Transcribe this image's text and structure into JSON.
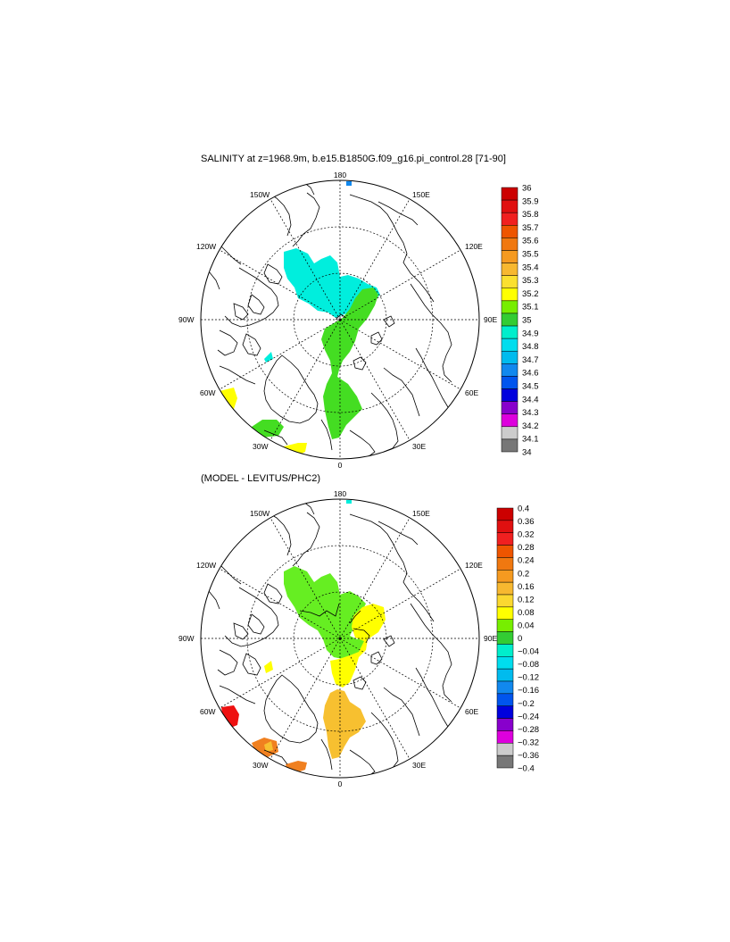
{
  "panels": [
    {
      "title": "SALINITY at z=1968.9m, b.e15.B1850G.f09_g16.pi_control.28 [71-90]",
      "lon_labels": {
        "top": "180",
        "bottom": "0",
        "left": "90W",
        "right": "90E",
        "w150": "150W",
        "e150": "150E",
        "w120": "120W",
        "e120": "120E",
        "w60": "60W",
        "e60": "60E",
        "w30": "30W",
        "e30": "30E"
      },
      "colorbar": {
        "labels": [
          "36",
          "35.9",
          "35.8",
          "35.7",
          "35.6",
          "35.5",
          "35.4",
          "35.3",
          "35.2",
          "35.1",
          "35",
          "34.9",
          "34.8",
          "34.7",
          "34.6",
          "34.5",
          "34.4",
          "34.3",
          "34.2",
          "34.1",
          "34"
        ],
        "colors": [
          "#cc0000",
          "#e01010",
          "#f02020",
          "#ee5500",
          "#f07810",
          "#f59a20",
          "#f7b830",
          "#fbe030",
          "#ffff00",
          "#77ee00",
          "#33cc33",
          "#00eecc",
          "#00ddee",
          "#00bbee",
          "#1188ee",
          "#0055ee",
          "#0000dd",
          "#8800cc",
          "#dd00dd",
          "#cccccc",
          "#777777"
        ]
      },
      "regions": [
        {
          "label": "cyan",
          "color": "#00eedd"
        },
        {
          "label": "green",
          "color": "#44dd22"
        },
        {
          "label": "yellow",
          "color": "#ffff00"
        }
      ]
    },
    {
      "title": "(MODEL - LEVITUS/PHC2)",
      "lon_labels": {
        "top": "180",
        "bottom": "0",
        "left": "90W",
        "right": "90E",
        "w150": "150W",
        "e150": "150E",
        "w120": "120W",
        "e120": "120E",
        "w60": "60W",
        "e60": "60E",
        "w30": "30W",
        "e30": "30E"
      },
      "colorbar": {
        "labels": [
          "0.4",
          "0.36",
          "0.32",
          "0.28",
          "0.24",
          "0.2",
          "0.16",
          "0.12",
          "0.08",
          "0.04",
          "0",
          "−0.04",
          "−0.08",
          "−0.12",
          "−0.16",
          "−0.2",
          "−0.24",
          "−0.28",
          "−0.32",
          "−0.36",
          "−0.4"
        ],
        "colors": [
          "#cc0000",
          "#e01010",
          "#f02020",
          "#ee5500",
          "#f07810",
          "#f59a20",
          "#f7b830",
          "#fbd830",
          "#ffff00",
          "#77ee00",
          "#33cc33",
          "#00eecc",
          "#00ddee",
          "#00bbee",
          "#1188ee",
          "#0055ee",
          "#0000dd",
          "#8800cc",
          "#dd00dd",
          "#cccccc",
          "#777777"
        ]
      },
      "regions": [
        {
          "label": "green",
          "color": "#66ee22"
        },
        {
          "label": "yellow",
          "color": "#ffff00"
        },
        {
          "label": "orange",
          "color": "#f7c030"
        },
        {
          "label": "red",
          "color": "#ee1111"
        }
      ]
    }
  ]
}
